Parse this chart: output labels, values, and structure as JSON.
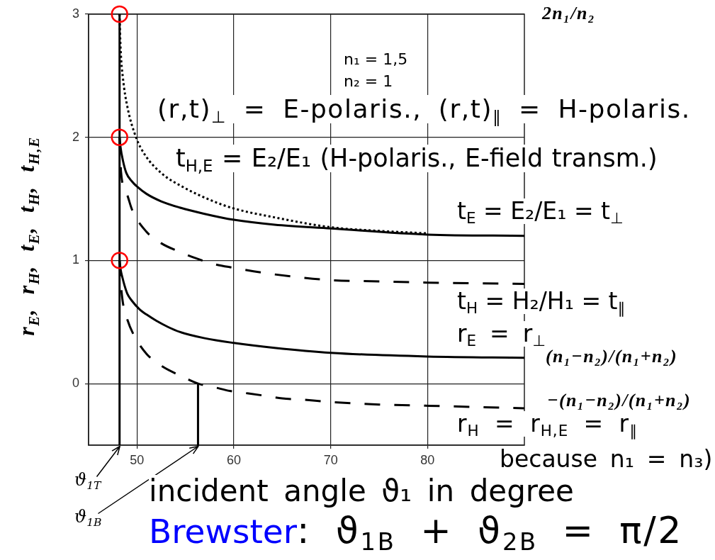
{
  "chart_data": {
    "type": "line",
    "xlabel": "incident angle ϑ₁ in degree",
    "ylabel": "r$_{E}$,  r$_{H}$,  t$_{E}$,  t$_{H}$,  t$_{H,E}$",
    "xlim": [
      45,
      90
    ],
    "xticks": [
      50,
      60,
      70,
      80
    ],
    "ylim": [
      -0.5,
      3
    ],
    "yticks": [
      0,
      1,
      2,
      3
    ],
    "grid": true,
    "series": [
      {
        "color": "#000000",
        "line_style": "dotted",
        "x": [
          48.2,
          48.3,
          48.55,
          49.0,
          49.9,
          50.8,
          52.5,
          54.9,
          57.9,
          60.1,
          64.2,
          70,
          75,
          80
        ],
        "values": [
          3,
          2.73,
          2.48,
          2.25,
          2.0,
          1.86,
          1.71,
          1.59,
          1.48,
          1.42,
          1.35,
          1.27,
          1.24,
          1.22
        ]
      },
      {
        "color": "#000000",
        "line_style": "solid",
        "x": [
          48.2,
          48.3,
          48.55,
          48.9,
          49.5,
          50,
          51,
          52.5,
          54.4,
          56.9,
          60,
          64.2,
          70,
          80,
          90
        ],
        "values": [
          2,
          1.92,
          1.81,
          1.71,
          1.64,
          1.6,
          1.54,
          1.48,
          1.43,
          1.38,
          1.33,
          1.29,
          1.26,
          1.21,
          1.2
        ]
      },
      {
        "color": "#000000",
        "line_style": "dashed",
        "x": [
          48.2,
          48.35,
          49.0,
          49.5,
          50.9,
          52.5,
          54.4,
          56,
          58,
          60,
          63,
          66,
          70,
          75,
          80,
          90
        ],
        "values": [
          2,
          1.72,
          1.53,
          1.41,
          1.24,
          1.14,
          1.07,
          1.02,
          0.97,
          0.94,
          0.9,
          0.87,
          0.84,
          0.83,
          0.82,
          0.81
        ]
      },
      {
        "color": "#000000",
        "line_style": "solid",
        "x": [
          48.2,
          48.3,
          48.5,
          48.7,
          49.0,
          49.5,
          50.3,
          51.0,
          52.0,
          53.2,
          54.4,
          56.9,
          60,
          64.2,
          70,
          80,
          90
        ],
        "values": [
          1,
          0.93,
          0.86,
          0.8,
          0.73,
          0.67,
          0.6,
          0.56,
          0.51,
          0.46,
          0.42,
          0.37,
          0.33,
          0.29,
          0.25,
          0.22,
          0.21
        ]
      },
      {
        "color": "#000000",
        "line_style": "dashed",
        "x": [
          48.2,
          48.3,
          48.5,
          49.0,
          49.7,
          51.0,
          52.6,
          54.6,
          56.3,
          58,
          59.6,
          61.5,
          63.3,
          65,
          67,
          70,
          75,
          80,
          90
        ],
        "values": [
          1,
          0.85,
          0.68,
          0.52,
          0.39,
          0.24,
          0.14,
          0.06,
          0,
          -0.03,
          -0.06,
          -0.08,
          -0.1,
          -0.12,
          -0.13,
          -0.15,
          -0.17,
          -0.18,
          -0.2
        ]
      },
      {
        "color": "#000000",
        "line_style": "solid",
        "x": [
          56.3,
          56.3
        ],
        "values": [
          0,
          -0.5
        ]
      },
      {
        "type": "scatter",
        "color": "#ff0000",
        "marker": "circle",
        "x": [
          48.2,
          48.2,
          48.2
        ],
        "values": [
          3,
          2,
          1
        ]
      }
    ],
    "ref_lines": [
      {
        "axis": "x",
        "value": 48.2,
        "color": "#000000"
      }
    ],
    "annotations": [
      "n₁ = 1,5",
      "n₂ = 1",
      "2n₁/n₂",
      "(r,t)$_{⊥}$ = E-polaris., (r,t)$_{∥}$ = H-polaris.",
      "t$_{H,E}$ = E₂/E₁ (H-polaris., E-field transm.)",
      "t$_{E}$ = E₂/E₁ = t$_{⊥}$",
      "t$_{H}$ = H₂/H₁ = t$_{∥}$",
      "r$_{E}$ = r$_{⊥}$",
      "(n₁−n₂)/(n₁+n₂)",
      "−(n₁−n₂)/(n₁+n₂)",
      "r$_{H}$ = r$_{H,E}$ = r$_{∥}$",
      "because n₁ = n₃)",
      {
        "text": "ϑ$_{1T}$",
        "x": 48.2,
        "y": -0.5
      },
      {
        "text": "ϑ$_{1B}$",
        "x": 56.3,
        "y": -0.5
      },
      "Brewster",
      ": ϑ$_{1B}$ + ϑ$_{2B}$ = π/2"
    ]
  }
}
